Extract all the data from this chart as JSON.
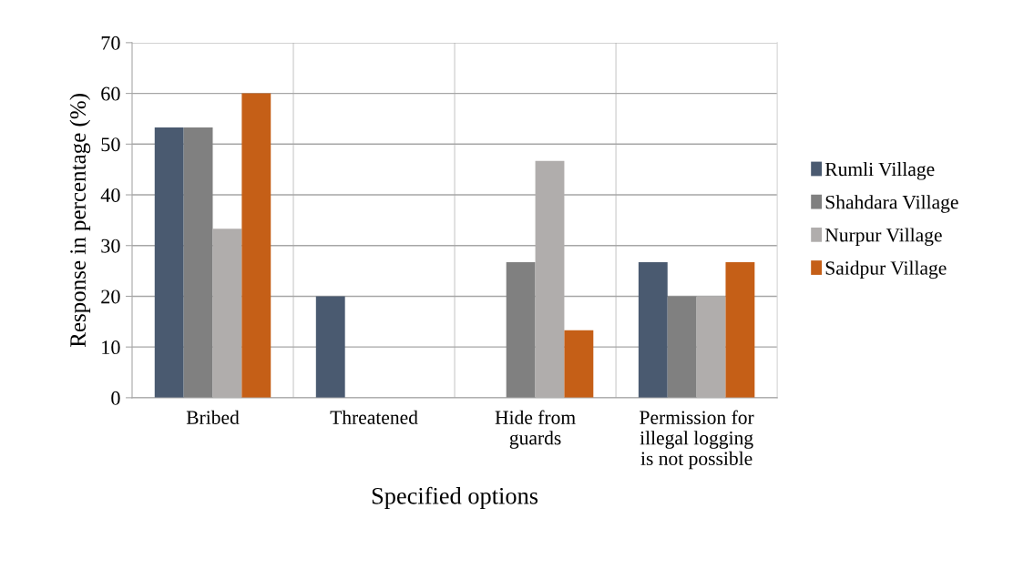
{
  "chart_data": {
    "type": "bar",
    "categories": [
      "Bribed",
      "Threatened",
      "Hide from\nguards",
      "Permission for\nillegal logging\nis not possible"
    ],
    "series": [
      {
        "name": "Rumli Village",
        "color": "#4a5a70",
        "values": [
          53.3,
          20,
          0,
          26.7
        ]
      },
      {
        "name": "Shahdara Village",
        "color": "#808080",
        "values": [
          53.3,
          0,
          26.7,
          20
        ]
      },
      {
        "name": "Nurpur Village",
        "color": "#b0adac",
        "values": [
          33.3,
          0,
          46.7,
          20
        ]
      },
      {
        "name": "Saidpur Village",
        "color": "#c55f17",
        "values": [
          60,
          0,
          13.3,
          26.7
        ]
      }
    ],
    "xlabel": "Specified options",
    "ylabel": "Response in percentage (%)",
    "ylim": [
      0,
      70
    ],
    "yticks": [
      0,
      10,
      20,
      30,
      40,
      50,
      60,
      70
    ],
    "grid": true,
    "legend": "right"
  }
}
